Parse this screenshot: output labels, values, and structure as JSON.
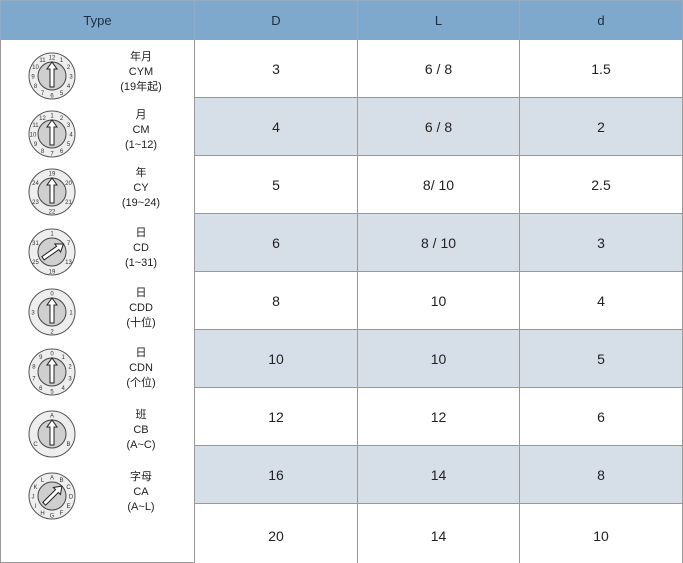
{
  "headers": [
    "Type",
    "D",
    "L",
    "d"
  ],
  "colors": {
    "header_bg": "#7ea8cc",
    "shade_bg": "#d6dfe8"
  },
  "rows": [
    {
      "type": {
        "line1": "年月",
        "line2": "CYM",
        "line3": "(19年起)",
        "icon": "dial-year-month-icon"
      },
      "D": "3",
      "L": "6 / 8",
      "d": "1.5"
    },
    {
      "type": {
        "line1": "月",
        "line2": "CM",
        "line3": "(1~12)",
        "icon": "dial-month-icon"
      },
      "D": "4",
      "L": "6 / 8",
      "d": "2"
    },
    {
      "type": {
        "line1": "年",
        "line2": "CY",
        "line3": "(19~24)",
        "icon": "dial-year-icon"
      },
      "D": "5",
      "L": "8/ 10",
      "d": "2.5"
    },
    {
      "type": {
        "line1": "日",
        "line2": "CD",
        "line3": "(1~31)",
        "icon": "dial-day-icon"
      },
      "D": "6",
      "L": "8 / 10",
      "d": "3"
    },
    {
      "type": {
        "line1": "日",
        "line2": "CDD",
        "line3": "(十位)",
        "icon": "dial-day-tens-icon"
      },
      "D": "8",
      "L": "10",
      "d": "4"
    },
    {
      "type": {
        "line1": "日",
        "line2": "CDN",
        "line3": "(个位)",
        "icon": "dial-day-units-icon"
      },
      "D": "10",
      "L": "10",
      "d": "5"
    },
    {
      "type": {
        "line1": "班",
        "line2": "CB",
        "line3": "(A~C)",
        "icon": "dial-shift-icon"
      },
      "D": "12",
      "L": "12",
      "d": "6"
    },
    {
      "type": {
        "line1": "字母",
        "line2": "CA",
        "line3": "(A~L)",
        "icon": "dial-letter-icon"
      },
      "D": "16",
      "L": "14",
      "d": "8"
    },
    {
      "type": {
        "line1": "",
        "line2": "",
        "line3": "",
        "icon": ""
      },
      "D": "20",
      "L": "14",
      "d": "10"
    }
  ]
}
